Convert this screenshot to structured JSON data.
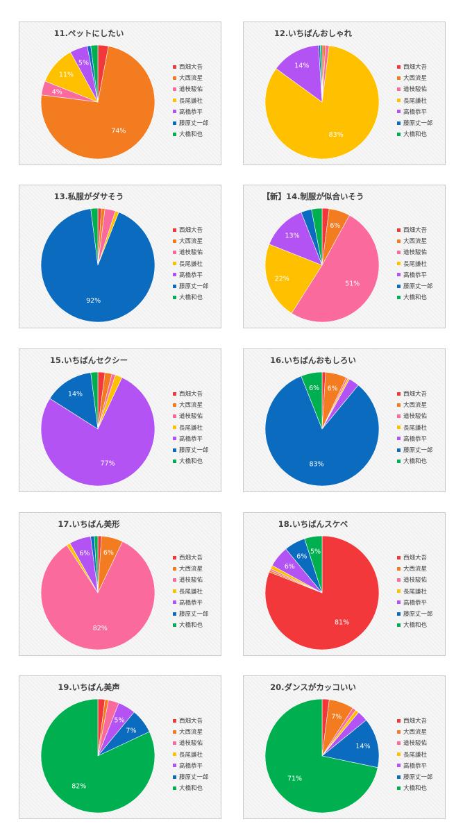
{
  "legend": [
    "西畑大吾",
    "大西流星",
    "道枝駿佑",
    "長尾謙杜",
    "高橋恭平",
    "藤原丈一郎",
    "大橋和也"
  ],
  "colors": [
    "#f2383a",
    "#f47c20",
    "#fb6a9d",
    "#ffc000",
    "#b353f3",
    "#0a6bbf",
    "#00b050"
  ],
  "chart_data": [
    {
      "type": "pie",
      "title": "11.ペットにしたい",
      "categories": [
        "西畑大吾",
        "大西流星",
        "道枝駿佑",
        "長尾謙杜",
        "高橋恭平",
        "藤原丈一郎",
        "大橋和也"
      ],
      "values": [
        3,
        74,
        4,
        11,
        5,
        1,
        2
      ],
      "labels": [
        "",
        "74%",
        "4%",
        "11%",
        "5%",
        "",
        ""
      ]
    },
    {
      "type": "pie",
      "title": "12.いちばんおしゃれ",
      "categories": [
        "西畑大吾",
        "大西流星",
        "道枝駿佑",
        "長尾謙杜",
        "高橋恭平",
        "藤原丈一郎",
        "大橋和也"
      ],
      "values": [
        0.5,
        0.5,
        1,
        83,
        14,
        0.5,
        0.5
      ],
      "labels": [
        "",
        "",
        "",
        "83%",
        "14%",
        "",
        ""
      ]
    },
    {
      "type": "pie",
      "title": "13.私服がダサそう",
      "categories": [
        "西畑大吾",
        "大西流星",
        "道枝駿佑",
        "長尾謙杜",
        "高橋恭平",
        "藤原丈一郎",
        "大橋和也"
      ],
      "values": [
        1,
        1,
        3,
        1,
        0,
        92,
        2
      ],
      "labels": [
        "",
        "",
        "",
        "",
        "",
        "92%",
        ""
      ]
    },
    {
      "type": "pie",
      "title": "【新】14.制服が似合いそう",
      "categories": [
        "西畑大吾",
        "大西流星",
        "道枝駿佑",
        "長尾謙杜",
        "高橋恭平",
        "藤原丈一郎",
        "大橋和也"
      ],
      "values": [
        2,
        6,
        51,
        22,
        13,
        3,
        3
      ],
      "labels": [
        "",
        "6%",
        "51%",
        "22%",
        "13%",
        "",
        ""
      ]
    },
    {
      "type": "pie",
      "title": "15.いちばんセクシー",
      "categories": [
        "西畑大吾",
        "大西流星",
        "道枝駿佑",
        "長尾謙杜",
        "高橋恭平",
        "藤原丈一郎",
        "大橋和也"
      ],
      "values": [
        2,
        2,
        1,
        2,
        77,
        14,
        2
      ],
      "labels": [
        "",
        "",
        "",
        "",
        "77%",
        "14%",
        ""
      ]
    },
    {
      "type": "pie",
      "title": "16.いちばんおもしろい",
      "categories": [
        "西畑大吾",
        "大西流星",
        "道枝駿佑",
        "長尾謙杜",
        "高橋恭平",
        "藤原丈一郎",
        "大橋和也"
      ],
      "values": [
        1,
        6,
        0.5,
        0.5,
        3,
        83,
        6
      ],
      "labels": [
        "",
        "6%",
        "",
        "",
        "",
        "83%",
        "6%"
      ]
    },
    {
      "type": "pie",
      "title": "17.いちばん美形",
      "categories": [
        "西畑大吾",
        "大西流星",
        "道枝駿佑",
        "長尾謙杜",
        "高橋恭平",
        "藤原丈一郎",
        "大橋和也"
      ],
      "values": [
        1,
        6,
        82,
        1,
        6,
        1,
        1
      ],
      "labels": [
        "",
        "6%",
        "82%",
        "",
        "6%",
        "",
        ""
      ]
    },
    {
      "type": "pie",
      "title": "18.いちばんスケベ",
      "categories": [
        "西畑大吾",
        "大西流星",
        "道枝駿佑",
        "長尾謙杜",
        "高橋恭平",
        "藤原丈一郎",
        "大橋和也"
      ],
      "values": [
        81,
        0.5,
        0.5,
        1,
        6,
        6,
        5
      ],
      "labels": [
        "81%",
        "",
        "",
        "",
        "6%",
        "6%",
        "5%"
      ]
    },
    {
      "type": "pie",
      "title": "19.いちばん美声",
      "categories": [
        "西畑大吾",
        "大西流星",
        "道枝駿佑",
        "長尾謙杜",
        "高橋恭平",
        "藤原丈一郎",
        "大橋和也"
      ],
      "values": [
        2,
        1,
        3,
        0,
        5,
        7,
        82
      ],
      "labels": [
        "",
        "",
        "",
        "",
        "5%",
        "7%",
        "82%"
      ]
    },
    {
      "type": "pie",
      "title": "20.ダンスがカッコいい",
      "categories": [
        "西畑大吾",
        "大西流星",
        "道枝駿佑",
        "長尾謙杜",
        "高橋恭平",
        "藤原丈一郎",
        "大橋和也"
      ],
      "values": [
        2,
        7,
        1,
        1,
        3,
        14,
        71
      ],
      "labels": [
        "",
        "7%",
        "",
        "",
        "",
        "14%",
        "71%"
      ]
    }
  ]
}
